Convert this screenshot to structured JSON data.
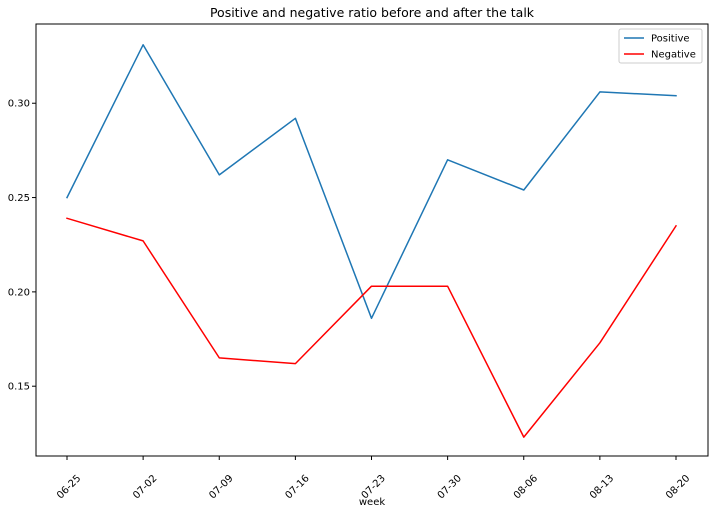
{
  "chart_data": {
    "type": "line",
    "title": "Positive and negative ratio before and after the talk",
    "xlabel": "week",
    "ylabel": "",
    "categories": [
      "06-25",
      "07-02",
      "07-09",
      "07-16",
      "07-23",
      "07-30",
      "08-06",
      "08-13",
      "08-20"
    ],
    "ylim": [
      0.113,
      0.342
    ],
    "yticks": [
      0.15,
      0.2,
      0.25,
      0.3
    ],
    "ytick_labels": [
      "0.15",
      "0.20",
      "0.25",
      "0.30"
    ],
    "grid": false,
    "legend_position": "top-right",
    "series": [
      {
        "name": "Positive",
        "color": "#1f77b4",
        "values": [
          0.25,
          0.331,
          0.262,
          0.292,
          0.186,
          0.27,
          0.254,
          0.306,
          0.304
        ]
      },
      {
        "name": "Negative",
        "color": "#ff0000",
        "values": [
          0.239,
          0.227,
          0.165,
          0.162,
          0.203,
          0.203,
          0.123,
          0.173,
          0.235
        ]
      }
    ]
  }
}
